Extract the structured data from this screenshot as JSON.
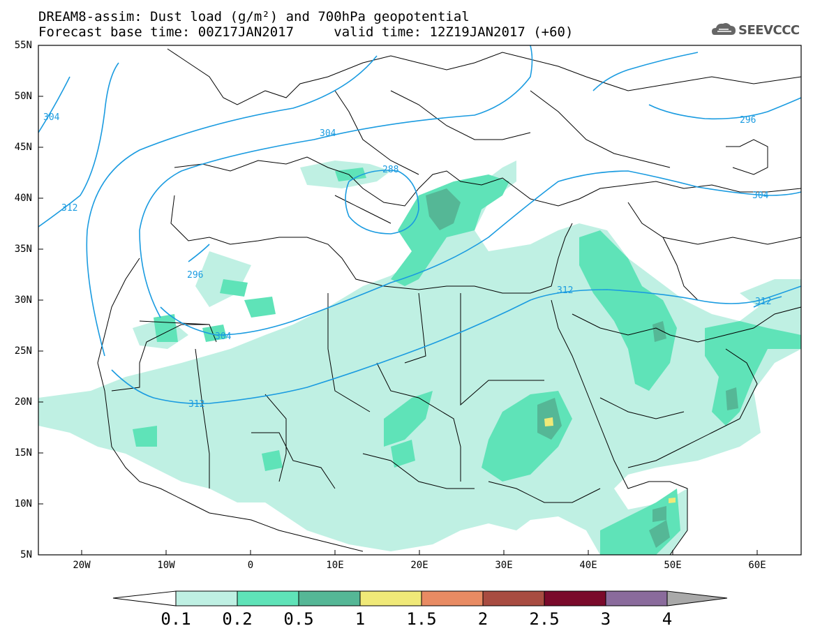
{
  "title": {
    "line1": "DREAM8-assim: Dust load (g/m²) and 700hPa geopotential",
    "base_time_label": "Forecast base time: 00Z17JAN2017",
    "valid_time_label": "valid time: 12Z19JAN2017 (+60)"
  },
  "logo": {
    "text": "SEEVCCC",
    "icon": "cloud-logo-icon"
  },
  "axes": {
    "lat_labels": [
      "55N",
      "50N",
      "45N",
      "40N",
      "35N",
      "30N",
      "25N",
      "20N",
      "15N",
      "10N",
      "5N"
    ],
    "lon_labels": [
      "20W",
      "10W",
      "0",
      "10E",
      "20E",
      "30E",
      "40E",
      "50E",
      "60E"
    ]
  },
  "contours": [
    {
      "label": "304"
    },
    {
      "label": "312"
    },
    {
      "label": "304"
    },
    {
      "label": "296"
    },
    {
      "label": "304"
    },
    {
      "label": "312"
    },
    {
      "label": "296"
    },
    {
      "label": "304"
    },
    {
      "label": "312"
    },
    {
      "label": "312"
    },
    {
      "label": "288"
    }
  ],
  "colorbar": {
    "labels": [
      "0.1",
      "0.2",
      "0.5",
      "1",
      "1.5",
      "2",
      "2.5",
      "3",
      "4"
    ],
    "colors": [
      "#ffffff",
      "#bff0e3",
      "#5fe3b8",
      "#55b796",
      "#f0e978",
      "#e88b63",
      "#a84c41",
      "#7a0a2b",
      "#8a6b9c",
      "#a9a9a9"
    ]
  },
  "colors": {
    "coast": "#000000",
    "geopotential_line": "#1a9be0",
    "dust_light": "#bff0e3",
    "dust_mid": "#5fe3b8",
    "dust_dark": "#55b796",
    "dust_high": "#f0e978"
  }
}
